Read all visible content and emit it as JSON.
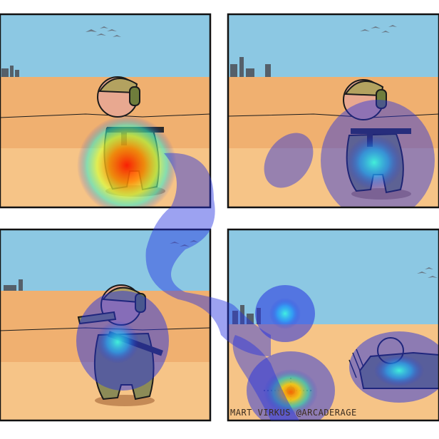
{
  "comic": {
    "credit": "MART VIRKUS @ARCADERAGE"
  },
  "colors": {
    "sky": "#8cc8e3",
    "sand_far": "#f0b070",
    "sand_near": "#f6c487",
    "outline": "#1b1b1b",
    "helmet": "#b3a260",
    "body": "#8c8b57",
    "skin": "#e8a890",
    "heat_low": "#1f2bd6",
    "heat_mid": "#2df0c8",
    "heat_high": "#ff3b00"
  },
  "icons": [
    "birds-icon",
    "city-ruins-icon",
    "soldier-icon",
    "rifle-icon",
    "tank-icon",
    "explosion-icon"
  ]
}
